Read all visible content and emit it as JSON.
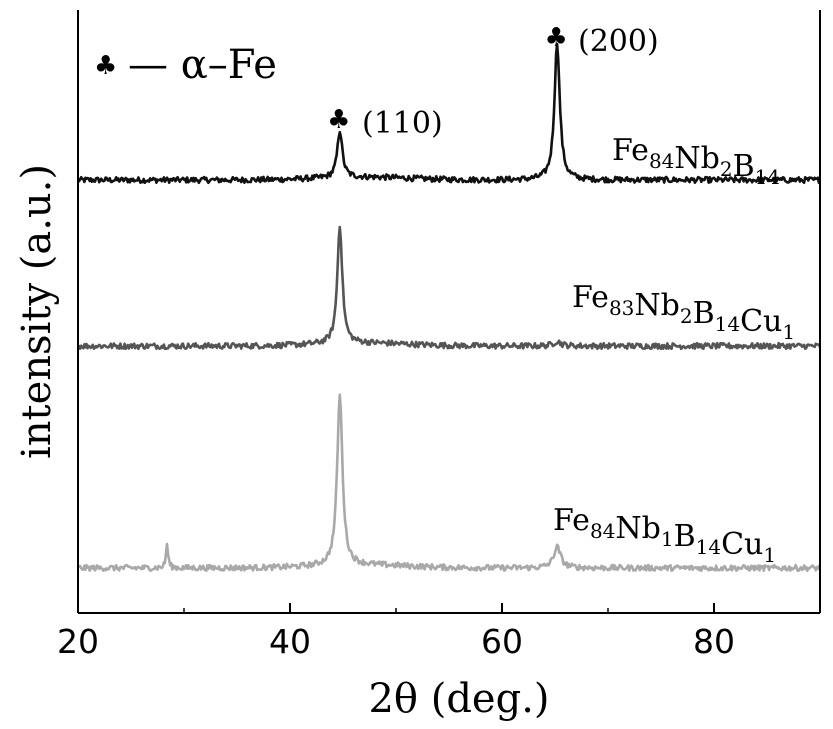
{
  "chart_data": {
    "type": "line",
    "xlabel": "2θ (deg.)",
    "ylabel": "intensity (a.u.)",
    "xlim": [
      20,
      90
    ],
    "xticks": [
      20,
      40,
      60,
      80
    ],
    "xtick_labels": [
      "20",
      "40",
      "60",
      "80"
    ],
    "y_ticks_shown": false,
    "legend": {
      "marker": "♣",
      "text": "— α–Fe"
    },
    "peak_labels": [
      {
        "x": 44.7,
        "marker": "♣",
        "label": "(110)"
      },
      {
        "x": 65.2,
        "marker": "♣",
        "label": "(200)"
      }
    ],
    "series": [
      {
        "name": "Fe84Nb2B14",
        "label_parts": [
          [
            "Fe",
            false
          ],
          [
            "84",
            true
          ],
          [
            "Nb",
            false
          ],
          [
            "2",
            true
          ],
          [
            "B",
            false
          ],
          [
            "14",
            true
          ]
        ],
        "color": "#111111",
        "baseline": 0.0,
        "peaks": [
          {
            "x": 44.7,
            "height": 0.5,
            "width": 0.28
          },
          {
            "x": 65.2,
            "height": 1.45,
            "width": 0.3
          }
        ]
      },
      {
        "name": "Fe83Nb2B14Cu1",
        "label_parts": [
          [
            "Fe",
            false
          ],
          [
            "83",
            true
          ],
          [
            "Nb",
            false
          ],
          [
            "2",
            true
          ],
          [
            "B",
            false
          ],
          [
            "14",
            true
          ],
          [
            "Cu",
            false
          ],
          [
            "1",
            true
          ]
        ],
        "color": "#555555",
        "baseline": 0.0,
        "peaks": [
          {
            "x": 44.7,
            "height": 1.25,
            "width": 0.28
          },
          {
            "x": 65.2,
            "height": 0.05,
            "width": 0.4
          }
        ]
      },
      {
        "name": "Fe84Nb1B14Cu1",
        "label_parts": [
          [
            "Fe",
            false
          ],
          [
            "84",
            true
          ],
          [
            "Nb",
            false
          ],
          [
            "1",
            true
          ],
          [
            "B",
            false
          ],
          [
            "14",
            true
          ],
          [
            "Cu",
            false
          ],
          [
            "1",
            true
          ]
        ],
        "color": "#a9a9a9",
        "baseline": 0.0,
        "peaks": [
          {
            "x": 28.4,
            "height": 0.25,
            "width": 0.12
          },
          {
            "x": 44.7,
            "height": 1.8,
            "width": 0.3
          },
          {
            "x": 65.2,
            "height": 0.22,
            "width": 0.4
          }
        ]
      }
    ]
  }
}
